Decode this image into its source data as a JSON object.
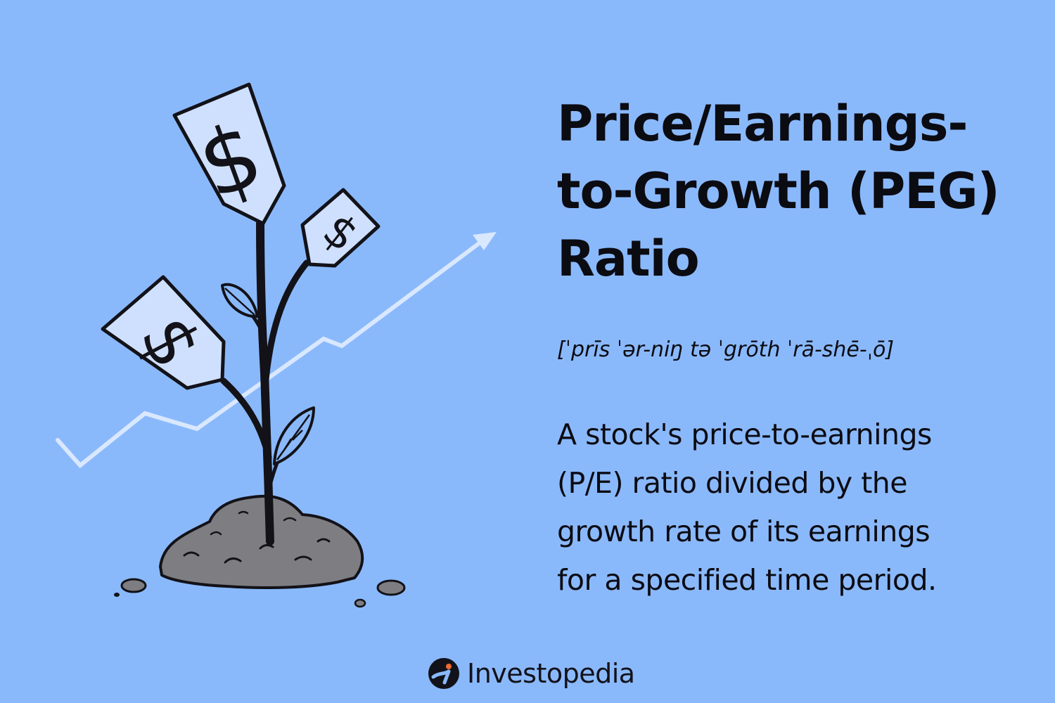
{
  "infographic": {
    "title": "Price/Earnings-\nto-Growth (PEG)\nRatio",
    "pronunciation": "[ˈprīs ˈər-niŋ tə ˈgrōth ˈrā-shē-ˌō]",
    "definition": "A stock's price-to-earnings\n(P/E) ratio divided by the\ngrowth rate of its earnings\nfor a specified time period.",
    "tag_symbol": "$"
  },
  "brand": {
    "name": "Investopedia",
    "icon": "investopedia-logo-icon"
  },
  "colors": {
    "background": "#8ab9fb",
    "text": "#0b0b12",
    "trend_line": "#d9e8ff",
    "tag_fill": "#cfe0ff",
    "stem": "#121218",
    "soil": "#7e7e82",
    "logo_accent": "#ef6a2e"
  }
}
